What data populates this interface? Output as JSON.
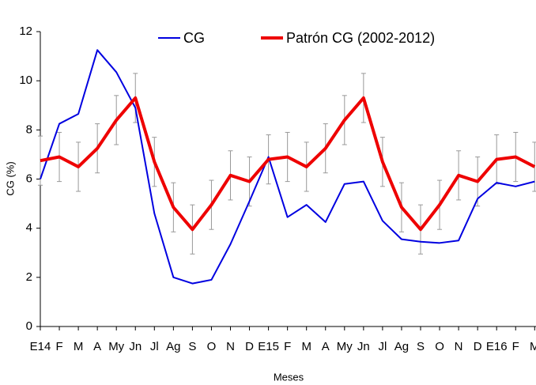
{
  "chart_data": {
    "type": "line",
    "x_label": "Meses",
    "y_label": "CG (%)",
    "categories": [
      "E14",
      "F",
      "M",
      "A",
      "My",
      "Jn",
      "Jl",
      "Ag",
      "S",
      "O",
      "N",
      "D",
      "E15",
      "F",
      "M",
      "A",
      "My",
      "Jn",
      "Jl",
      "Ag",
      "S",
      "O",
      "N",
      "D",
      "E16",
      "F",
      "M"
    ],
    "series": [
      {
        "name": "CG",
        "color": "#0000e0",
        "values": [
          6.0,
          8.25,
          8.65,
          11.25,
          10.35,
          8.9,
          4.6,
          2.0,
          1.75,
          1.9,
          3.35,
          5.1,
          6.9,
          4.45,
          4.95,
          4.25,
          5.8,
          5.9,
          4.3,
          3.55,
          3.45,
          3.4,
          3.5,
          5.2,
          5.85,
          5.7,
          5.9
        ]
      },
      {
        "name": "Patrón CG (2002-2012)",
        "color": "#ee0000",
        "values": [
          6.75,
          6.9,
          6.5,
          7.25,
          8.4,
          9.3,
          6.7,
          4.85,
          3.95,
          4.95,
          6.15,
          5.9,
          6.8,
          6.9,
          6.5,
          7.25,
          8.4,
          9.3,
          6.7,
          4.85,
          3.95,
          4.95,
          6.15,
          5.9,
          6.8,
          6.9,
          6.5
        ],
        "errors": [
          1,
          1,
          1,
          1,
          1,
          1,
          1,
          1,
          1,
          1,
          1,
          1,
          1,
          1,
          1,
          1,
          1,
          1,
          1,
          1,
          1,
          1,
          1,
          1,
          1,
          1,
          1
        ]
      }
    ],
    "ylim": [
      0,
      12
    ],
    "yticks": [
      0,
      2,
      4,
      6,
      8,
      10,
      12
    ],
    "grid": false,
    "legend": "top"
  }
}
